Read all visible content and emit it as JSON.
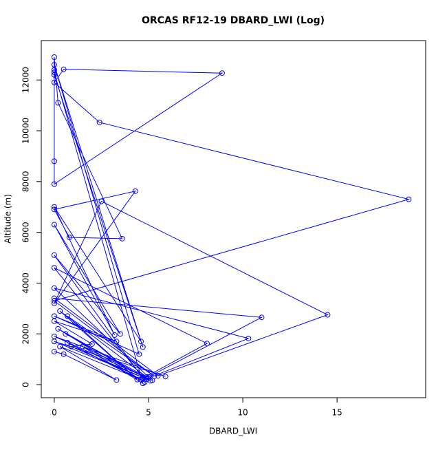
{
  "chart_data": {
    "type": "line",
    "title": "ORCAS RF12-19 DBARD_LWI (Log)",
    "x_label": "DBARD_LWI",
    "y_label": "Altitude (m)",
    "xlim": [
      -0.69,
      19.7
    ],
    "ylim": [
      -515,
      13550
    ],
    "xticks": [
      0,
      5,
      10,
      15
    ],
    "yticks": [
      0,
      2000,
      4000,
      6000,
      8000,
      10000,
      12000
    ],
    "x": [
      0,
      0.5,
      3.3,
      0.3,
      4.6,
      0.7,
      4.8,
      0.2,
      5.1,
      0.6,
      4.9,
      0.3,
      4.4,
      0.7,
      5.3,
      0,
      18.8,
      2.4,
      0,
      0.5,
      8.9,
      0,
      0,
      0,
      0.2,
      3.6,
      0.8,
      0,
      4.3,
      0,
      2.5,
      14.5,
      5.5,
      0,
      11,
      5.0,
      0,
      10.3,
      4.8,
      0,
      8.1,
      4.7,
      0,
      3.5,
      0,
      3.2,
      0,
      4.6,
      0,
      4.7,
      0,
      4.5,
      0,
      3.3,
      0,
      2.0,
      0.9,
      4.9,
      0,
      5.9,
      0,
      5.2,
      1.5,
      4.7,
      0,
      0
    ],
    "series": [
      {
        "name": "DBARD_LWI",
        "color": "#0000ff",
        "values": [
          1300,
          1200,
          180,
          1500,
          200,
          1650,
          100,
          2200,
          150,
          2000,
          300,
          2900,
          200,
          2700,
          330,
          3300,
          7300,
          10330,
          11900,
          12420,
          12270,
          7900,
          8800,
          12900,
          11100,
          5750,
          5800,
          6900,
          7620,
          3200,
          7220,
          2750,
          350,
          3400,
          2650,
          300,
          3800,
          1820,
          200,
          4600,
          1620,
          250,
          5100,
          2000,
          6300,
          1950,
          7000,
          1700,
          12200,
          1480,
          12600,
          1200,
          2700,
          1700,
          2500,
          1600,
          1500,
          220,
          1700,
          320,
          1900,
          170,
          1500,
          50,
          12300,
          12400
        ]
      }
    ]
  }
}
